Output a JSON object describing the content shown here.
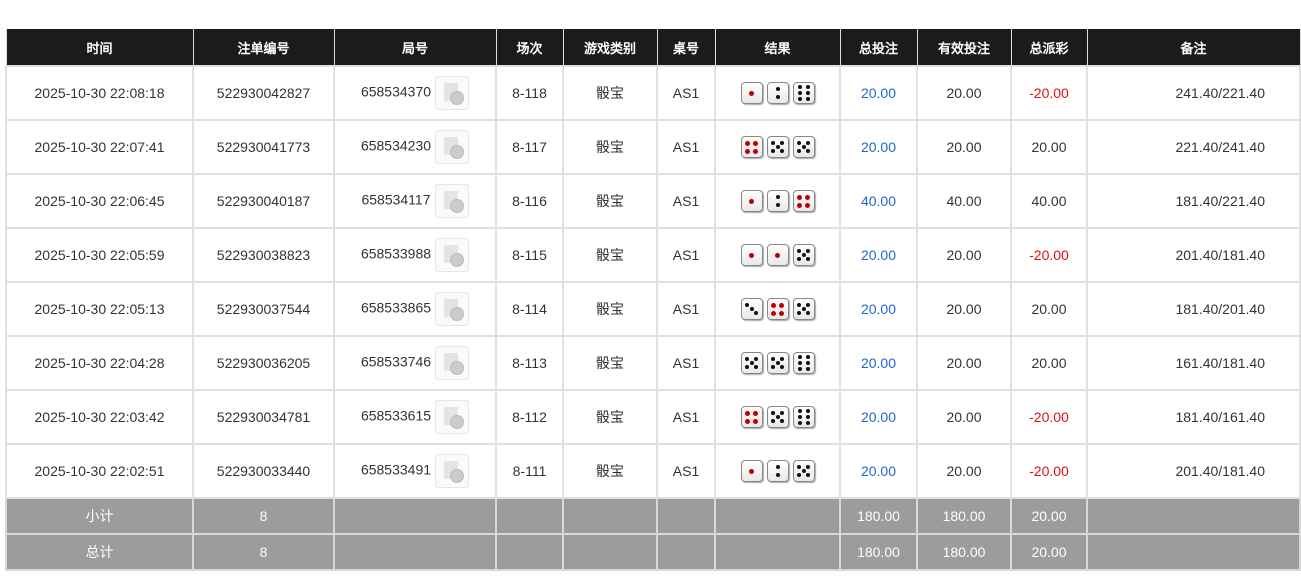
{
  "headers": [
    "时间",
    "注单编号",
    "局号",
    "场次",
    "游戏类别",
    "桌号",
    "结果",
    "总投注",
    "有效投注",
    "总派彩",
    "备注"
  ],
  "rows": [
    {
      "time": "2025-10-30 22:08:18",
      "bet_id": "522930042827",
      "round": "658534370",
      "session": "8-118",
      "game": "骰宝",
      "table": "AS1",
      "dice": [
        1,
        2,
        6
      ],
      "total_bet": "20.00",
      "valid_bet": "20.00",
      "payout": "-20.00",
      "note": "241.40/221.40"
    },
    {
      "time": "2025-10-30 22:07:41",
      "bet_id": "522930041773",
      "round": "658534230",
      "session": "8-117",
      "game": "骰宝",
      "table": "AS1",
      "dice": [
        4,
        5,
        5
      ],
      "total_bet": "20.00",
      "valid_bet": "20.00",
      "payout": "20.00",
      "note": "221.40/241.40"
    },
    {
      "time": "2025-10-30 22:06:45",
      "bet_id": "522930040187",
      "round": "658534117",
      "session": "8-116",
      "game": "骰宝",
      "table": "AS1",
      "dice": [
        1,
        2,
        4
      ],
      "total_bet": "40.00",
      "valid_bet": "40.00",
      "payout": "40.00",
      "note": "181.40/221.40"
    },
    {
      "time": "2025-10-30 22:05:59",
      "bet_id": "522930038823",
      "round": "658533988",
      "session": "8-115",
      "game": "骰宝",
      "table": "AS1",
      "dice": [
        1,
        1,
        5
      ],
      "total_bet": "20.00",
      "valid_bet": "20.00",
      "payout": "-20.00",
      "note": "201.40/181.40"
    },
    {
      "time": "2025-10-30 22:05:13",
      "bet_id": "522930037544",
      "round": "658533865",
      "session": "8-114",
      "game": "骰宝",
      "table": "AS1",
      "dice": [
        3,
        4,
        5
      ],
      "total_bet": "20.00",
      "valid_bet": "20.00",
      "payout": "20.00",
      "note": "181.40/201.40"
    },
    {
      "time": "2025-10-30 22:04:28",
      "bet_id": "522930036205",
      "round": "658533746",
      "session": "8-113",
      "game": "骰宝",
      "table": "AS1",
      "dice": [
        5,
        5,
        6
      ],
      "total_bet": "20.00",
      "valid_bet": "20.00",
      "payout": "20.00",
      "note": "161.40/181.40"
    },
    {
      "time": "2025-10-30 22:03:42",
      "bet_id": "522930034781",
      "round": "658533615",
      "session": "8-112",
      "game": "骰宝",
      "table": "AS1",
      "dice": [
        4,
        5,
        6
      ],
      "total_bet": "20.00",
      "valid_bet": "20.00",
      "payout": "-20.00",
      "note": "181.40/161.40"
    },
    {
      "time": "2025-10-30 22:02:51",
      "bet_id": "522930033440",
      "round": "658533491",
      "session": "8-111",
      "game": "骰宝",
      "table": "AS1",
      "dice": [
        1,
        2,
        5
      ],
      "total_bet": "20.00",
      "valid_bet": "20.00",
      "payout": "-20.00",
      "note": "201.40/181.40"
    }
  ],
  "subtotal": {
    "label": "小计",
    "count": "8",
    "total_bet": "180.00",
    "valid_bet": "180.00",
    "payout": "20.00"
  },
  "grandtotal": {
    "label": "总计",
    "count": "8",
    "total_bet": "180.00",
    "valid_bet": "180.00",
    "payout": "20.00"
  },
  "colors": {
    "header_bg": "#1b1b1b",
    "positive": "#2266cc",
    "negative": "#e01010",
    "summary_bg": "#9c9c9c"
  }
}
